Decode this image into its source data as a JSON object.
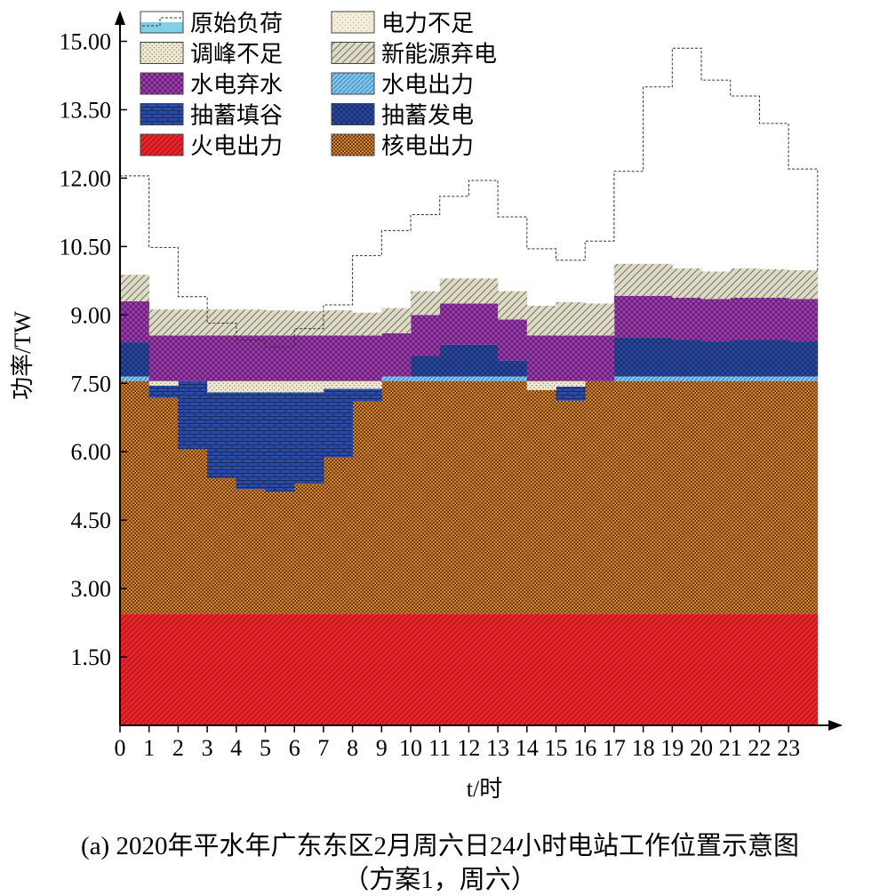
{
  "chart_data": {
    "type": "area",
    "title": "(a) 2020年平水年广东东区2月周六日24小时电站工作位置示意图",
    "subtitle": "（方案1，周六）",
    "xlabel": "t/时",
    "ylabel": "功率/TW",
    "x_ticks": [
      "0",
      "1",
      "2",
      "3",
      "4",
      "5",
      "6",
      "7",
      "8",
      "9",
      "10",
      "11",
      "12",
      "13",
      "14",
      "15",
      "16",
      "17",
      "18",
      "19",
      "20",
      "21",
      "22",
      "23"
    ],
    "y_ticks": [
      "1.50",
      "3.00",
      "4.50",
      "6.00",
      "7.50",
      "9.00",
      "10.50",
      "12.00",
      "13.50",
      "15.00"
    ],
    "ylim": [
      0,
      15.5
    ],
    "legend": {
      "position": "top-left",
      "items": [
        {
          "key": "load",
          "label": "原始负荷"
        },
        {
          "key": "shortage",
          "label": "电力不足"
        },
        {
          "key": "peak",
          "label": "调峰不足"
        },
        {
          "key": "renew_curt",
          "label": "新能源弃电"
        },
        {
          "key": "hydro_spill",
          "label": "水电弃水"
        },
        {
          "key": "hydro",
          "label": "水电出力"
        },
        {
          "key": "ps_pump",
          "label": "抽蓄填谷"
        },
        {
          "key": "ps_gen",
          "label": "抽蓄发电"
        },
        {
          "key": "thermal",
          "label": "火电出力"
        },
        {
          "key": "nuclear",
          "label": "核电出力"
        }
      ]
    },
    "colors": {
      "thermal": "#e8232a",
      "nuclear": "#f39a33",
      "ps_pump": "#2a4aa4",
      "ps_gen": "#2a4aa4",
      "hydro": "#7fc7e6",
      "hydro_spill": "#a040b0",
      "renew_curt": "#dedbc9",
      "peak": "#efe9d2",
      "shortage": "#f2ecd8",
      "load": "#7fd0e6"
    },
    "series": {
      "thermal": [
        2.45,
        2.45,
        2.45,
        2.45,
        2.45,
        2.45,
        2.45,
        2.45,
        2.45,
        2.45,
        2.45,
        2.45,
        2.45,
        2.45,
        2.45,
        2.45,
        2.45,
        2.45,
        2.45,
        2.45,
        2.45,
        2.45,
        2.45,
        2.45
      ],
      "nuclear_top": [
        7.55,
        7.55,
        7.55,
        7.55,
        7.55,
        7.55,
        7.55,
        7.55,
        7.55,
        7.55,
        7.55,
        7.55,
        7.55,
        7.55,
        7.55,
        7.55,
        7.55,
        7.55,
        7.55,
        7.55,
        7.55,
        7.55,
        7.55,
        7.55
      ],
      "pump_bottom": [
        7.55,
        7.18,
        6.05,
        5.42,
        5.18,
        5.12,
        5.3,
        5.88,
        7.1,
        7.55,
        7.55,
        7.55,
        7.55,
        7.55,
        7.55,
        7.12,
        7.55,
        7.55,
        7.55,
        7.55,
        7.55,
        7.55,
        7.55,
        7.55
      ],
      "peak_bottom": [
        7.55,
        7.45,
        7.55,
        7.3,
        7.3,
        7.3,
        7.3,
        7.38,
        7.38,
        7.55,
        7.55,
        7.55,
        7.55,
        7.55,
        7.35,
        7.43,
        7.55,
        7.55,
        7.55,
        7.55,
        7.55,
        7.55,
        7.55,
        7.55
      ],
      "hydro_top": [
        7.65,
        7.55,
        7.55,
        7.55,
        7.55,
        7.55,
        7.55,
        7.55,
        7.55,
        7.65,
        7.65,
        7.65,
        7.65,
        7.65,
        7.55,
        7.55,
        7.55,
        7.65,
        7.65,
        7.65,
        7.65,
        7.65,
        7.65,
        7.65
      ],
      "psgen_top": [
        8.4,
        7.55,
        7.55,
        7.55,
        7.55,
        7.55,
        7.55,
        7.55,
        7.55,
        7.65,
        8.1,
        8.35,
        8.35,
        8.0,
        7.55,
        7.55,
        7.55,
        8.5,
        8.5,
        8.45,
        8.42,
        8.45,
        8.45,
        8.42
      ],
      "spill_top": [
        9.3,
        8.55,
        8.55,
        8.55,
        8.55,
        8.55,
        8.55,
        8.55,
        8.55,
        8.6,
        9.0,
        9.25,
        9.25,
        8.9,
        8.55,
        8.55,
        8.55,
        9.42,
        9.42,
        9.38,
        9.35,
        9.38,
        9.38,
        9.35
      ],
      "renew_top": [
        9.88,
        9.12,
        9.12,
        9.12,
        9.12,
        9.1,
        9.08,
        9.1,
        9.05,
        9.15,
        9.52,
        9.8,
        9.8,
        9.52,
        9.2,
        9.28,
        9.25,
        10.12,
        10.12,
        10.02,
        9.95,
        10.02,
        10.0,
        9.98
      ],
      "load": [
        12.05,
        10.48,
        9.4,
        8.82,
        8.45,
        8.3,
        8.7,
        9.22,
        10.3,
        10.85,
        11.2,
        11.6,
        11.95,
        11.15,
        10.45,
        10.2,
        10.62,
        12.15,
        14.0,
        14.85,
        14.15,
        13.8,
        13.2,
        12.2
      ]
    }
  }
}
